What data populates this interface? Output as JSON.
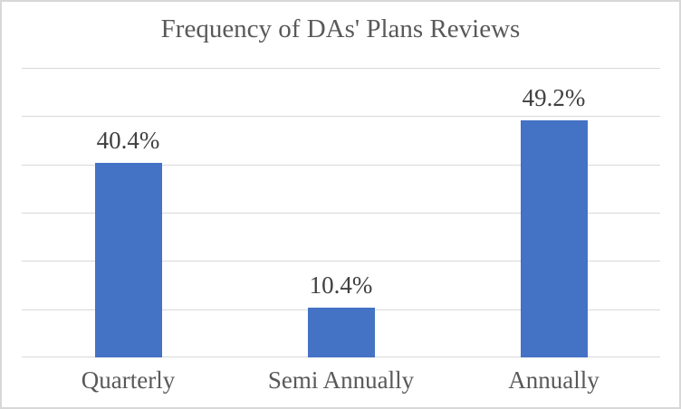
{
  "chart_data": {
    "type": "bar",
    "title": "Frequency of DAs' Plans Reviews",
    "categories": [
      "Quarterly",
      "Semi Annually",
      "Annually"
    ],
    "values": [
      40.4,
      10.4,
      49.2
    ],
    "data_labels": [
      "40.4%",
      "10.4%",
      "49.2%"
    ],
    "xlabel": "",
    "ylabel": "",
    "ylim": [
      0,
      60
    ],
    "gridline_step": 10,
    "grid": true,
    "legend": false,
    "y_tick_labels_visible": false,
    "series": [
      {
        "name": "Frequency of DAs' Plans Reviews",
        "values": [
          40.4,
          10.4,
          49.2
        ]
      }
    ]
  },
  "colors": {
    "bar_fill": "#4472C4",
    "gridline": "#D9D9D9",
    "chart_border": "#D8D8D8",
    "title_text": "#595959",
    "axis_label_text": "#595959",
    "data_label_text": "#404040",
    "background": "#FFFFFF"
  }
}
